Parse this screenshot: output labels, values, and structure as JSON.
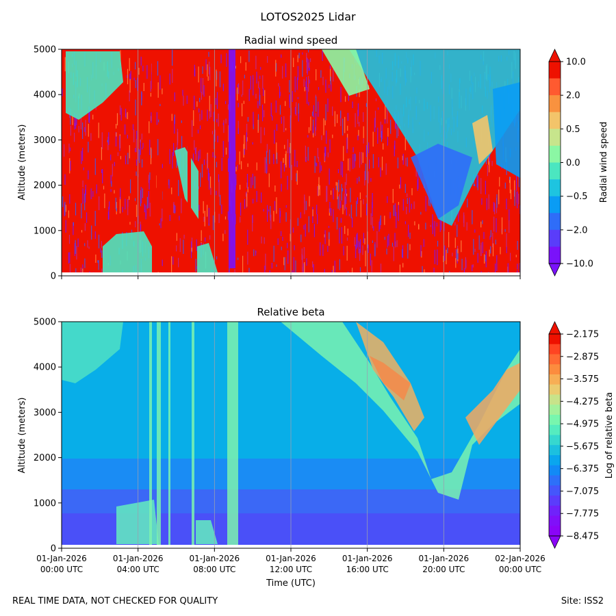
{
  "figure": {
    "suptitle": "LOTOS2025 Lidar",
    "footer_left": "REAL TIME DATA, NOT CHECKED FOR QUALITY",
    "footer_right": "Site: ISS2"
  },
  "chart_data": [
    {
      "type": "heatmap",
      "title": "Radial wind speed",
      "ylabel": "Altitude (meters)",
      "xlabel": "",
      "ylim": [
        0,
        5000
      ],
      "yticks": [
        0,
        1000,
        2000,
        3000,
        4000,
        5000
      ],
      "xlim_hours": [
        0,
        24
      ],
      "xtick_hours": [
        0,
        4,
        8,
        12,
        16,
        20,
        24
      ],
      "colorbar": {
        "label": "Radial wind speed",
        "tick_labels": [
          "10.0",
          "2.0",
          "0.5",
          "0.0",
          "−0.5",
          "−2.0",
          "−10.0"
        ],
        "colors_top_to_bottom": [
          "#ee1100",
          "#ff5a30",
          "#f9923f",
          "#f3c46a",
          "#c7e58c",
          "#8bf7a4",
          "#4be6c0",
          "#1ec4e0",
          "#0a9cf4",
          "#2f6df8",
          "#5a3dfa",
          "#7a12fa"
        ]
      }
    },
    {
      "type": "heatmap",
      "title": "Relative beta",
      "ylabel": "Altitude (meters)",
      "xlabel": "Time (UTC)",
      "ylim": [
        0,
        5000
      ],
      "yticks": [
        0,
        1000,
        2000,
        3000,
        4000,
        5000
      ],
      "xlim_hours": [
        0,
        24
      ],
      "xtick_hours": [
        0,
        4,
        8,
        12,
        16,
        20,
        24
      ],
      "xtick_labels": [
        [
          "01-Jan-2026",
          "00:00 UTC"
        ],
        [
          "01-Jan-2026",
          "04:00 UTC"
        ],
        [
          "01-Jan-2026",
          "08:00 UTC"
        ],
        [
          "01-Jan-2026",
          "12:00 UTC"
        ],
        [
          "01-Jan-2026",
          "16:00 UTC"
        ],
        [
          "01-Jan-2026",
          "20:00 UTC"
        ],
        [
          "02-Jan-2026",
          "00:00 UTC"
        ]
      ],
      "colorbar": {
        "label": "Log of relative beta",
        "tick_labels": [
          "−2.175",
          "−2.875",
          "−3.575",
          "−4.275",
          "−4.975",
          "−5.675",
          "−6.375",
          "−7.075",
          "−7.775",
          "−8.475"
        ],
        "colors_top_to_bottom": [
          "#ee1100",
          "#ff4422",
          "#ff6a33",
          "#fc8c3e",
          "#f7ae55",
          "#ebcb70",
          "#c8e38a",
          "#a3f19c",
          "#78f6ae",
          "#55ecbf",
          "#36d8cf",
          "#1cc0df",
          "#0aa6ee",
          "#128af6",
          "#2d70f9",
          "#4556fb",
          "#5b3cfb",
          "#7022fa",
          "#8010f9",
          "#8a05f7"
        ]
      }
    }
  ]
}
